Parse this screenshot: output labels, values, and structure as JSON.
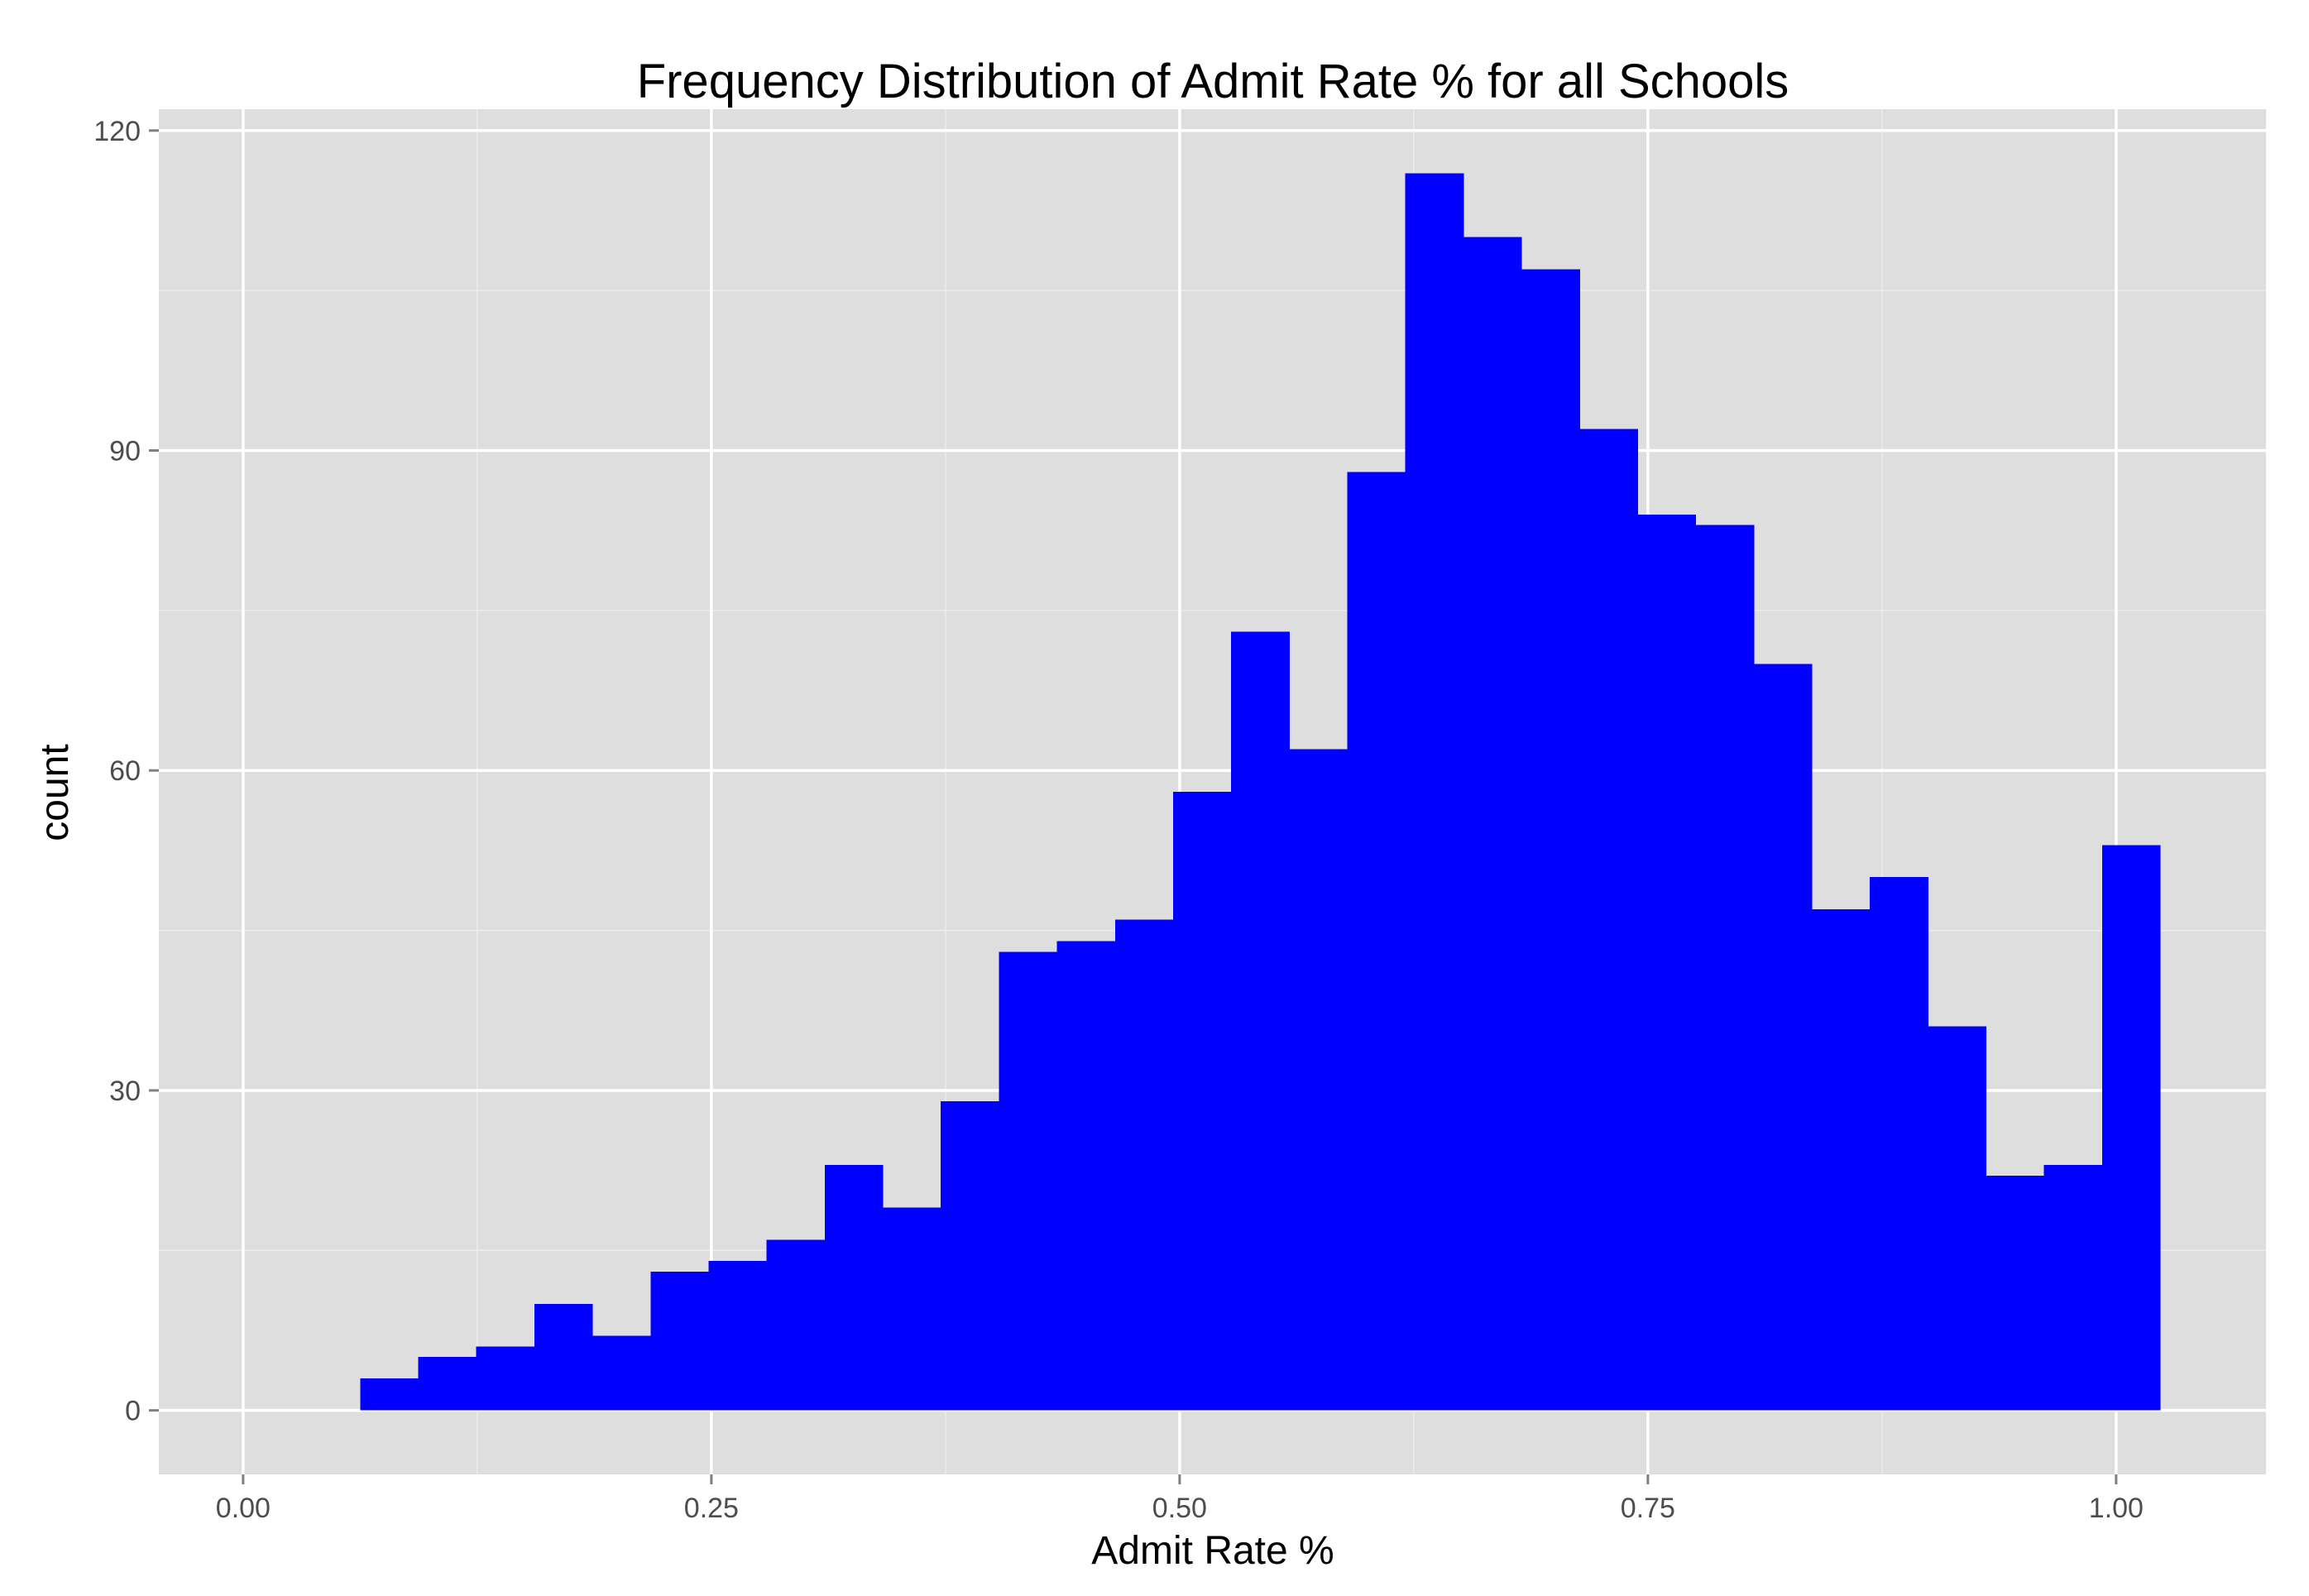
{
  "chart_data": {
    "type": "bar",
    "subtype": "histogram",
    "title": "Frequency Distribution of Admit Rate % for all Schools",
    "xlabel": "Admit Rate %",
    "ylabel": "count",
    "xlim": [
      -0.045,
      1.08
    ],
    "ylim": [
      -6,
      122
    ],
    "x_ticks": [
      0.0,
      0.25,
      0.5,
      0.75,
      1.0
    ],
    "x_tick_labels": [
      "0.00",
      "0.25",
      "0.50",
      "0.75",
      "1.00"
    ],
    "y_ticks": [
      0,
      30,
      60,
      90,
      120
    ],
    "y_tick_labels": [
      "0",
      "30",
      "60",
      "90",
      "120"
    ],
    "grid": true,
    "bar_color": "#0000FF",
    "panel_background": "#DEDEDE",
    "bins": [
      {
        "start": 0.0625,
        "end": 0.0935,
        "count": 3
      },
      {
        "start": 0.0935,
        "end": 0.1245,
        "count": 5
      },
      {
        "start": 0.1245,
        "end": 0.1555,
        "count": 6
      },
      {
        "start": 0.1555,
        "end": 0.1865,
        "count": 10
      },
      {
        "start": 0.1865,
        "end": 0.2175,
        "count": 7
      },
      {
        "start": 0.2175,
        "end": 0.2485,
        "count": 13
      },
      {
        "start": 0.2485,
        "end": 0.2795,
        "count": 14
      },
      {
        "start": 0.2795,
        "end": 0.3105,
        "count": 16
      },
      {
        "start": 0.3105,
        "end": 0.3415,
        "count": 23
      },
      {
        "start": 0.3415,
        "end": 0.3725,
        "count": 19
      },
      {
        "start": 0.3725,
        "end": 0.4035,
        "count": 29
      },
      {
        "start": 0.4035,
        "end": 0.4345,
        "count": 43
      },
      {
        "start": 0.4345,
        "end": 0.4655,
        "count": 44
      },
      {
        "start": 0.4655,
        "end": 0.4965,
        "count": 46
      },
      {
        "start": 0.4965,
        "end": 0.5275,
        "count": 58
      },
      {
        "start": 0.5275,
        "end": 0.5585,
        "count": 73
      },
      {
        "start": 0.5585,
        "end": 0.5895,
        "count": 62
      },
      {
        "start": 0.5895,
        "end": 0.6205,
        "count": 88
      },
      {
        "start": 0.6205,
        "end": 0.6515,
        "count": 116
      },
      {
        "start": 0.6515,
        "end": 0.6825,
        "count": 110
      },
      {
        "start": 0.6825,
        "end": 0.7135,
        "count": 107
      },
      {
        "start": 0.7135,
        "end": 0.7445,
        "count": 92
      },
      {
        "start": 0.7445,
        "end": 0.7755,
        "count": 84
      },
      {
        "start": 0.7755,
        "end": 0.8065,
        "count": 83
      },
      {
        "start": 0.8065,
        "end": 0.8375,
        "count": 70
      },
      {
        "start": 0.8375,
        "end": 0.8685,
        "count": 47
      },
      {
        "start": 0.8685,
        "end": 0.8995,
        "count": 50
      },
      {
        "start": 0.8995,
        "end": 0.9305,
        "count": 36
      },
      {
        "start": 0.9305,
        "end": 0.9615,
        "count": 22
      },
      {
        "start": 0.9615,
        "end": 0.9925,
        "count": 23
      },
      {
        "start": 0.9925,
        "end": 1.0235,
        "count": 53
      }
    ]
  }
}
